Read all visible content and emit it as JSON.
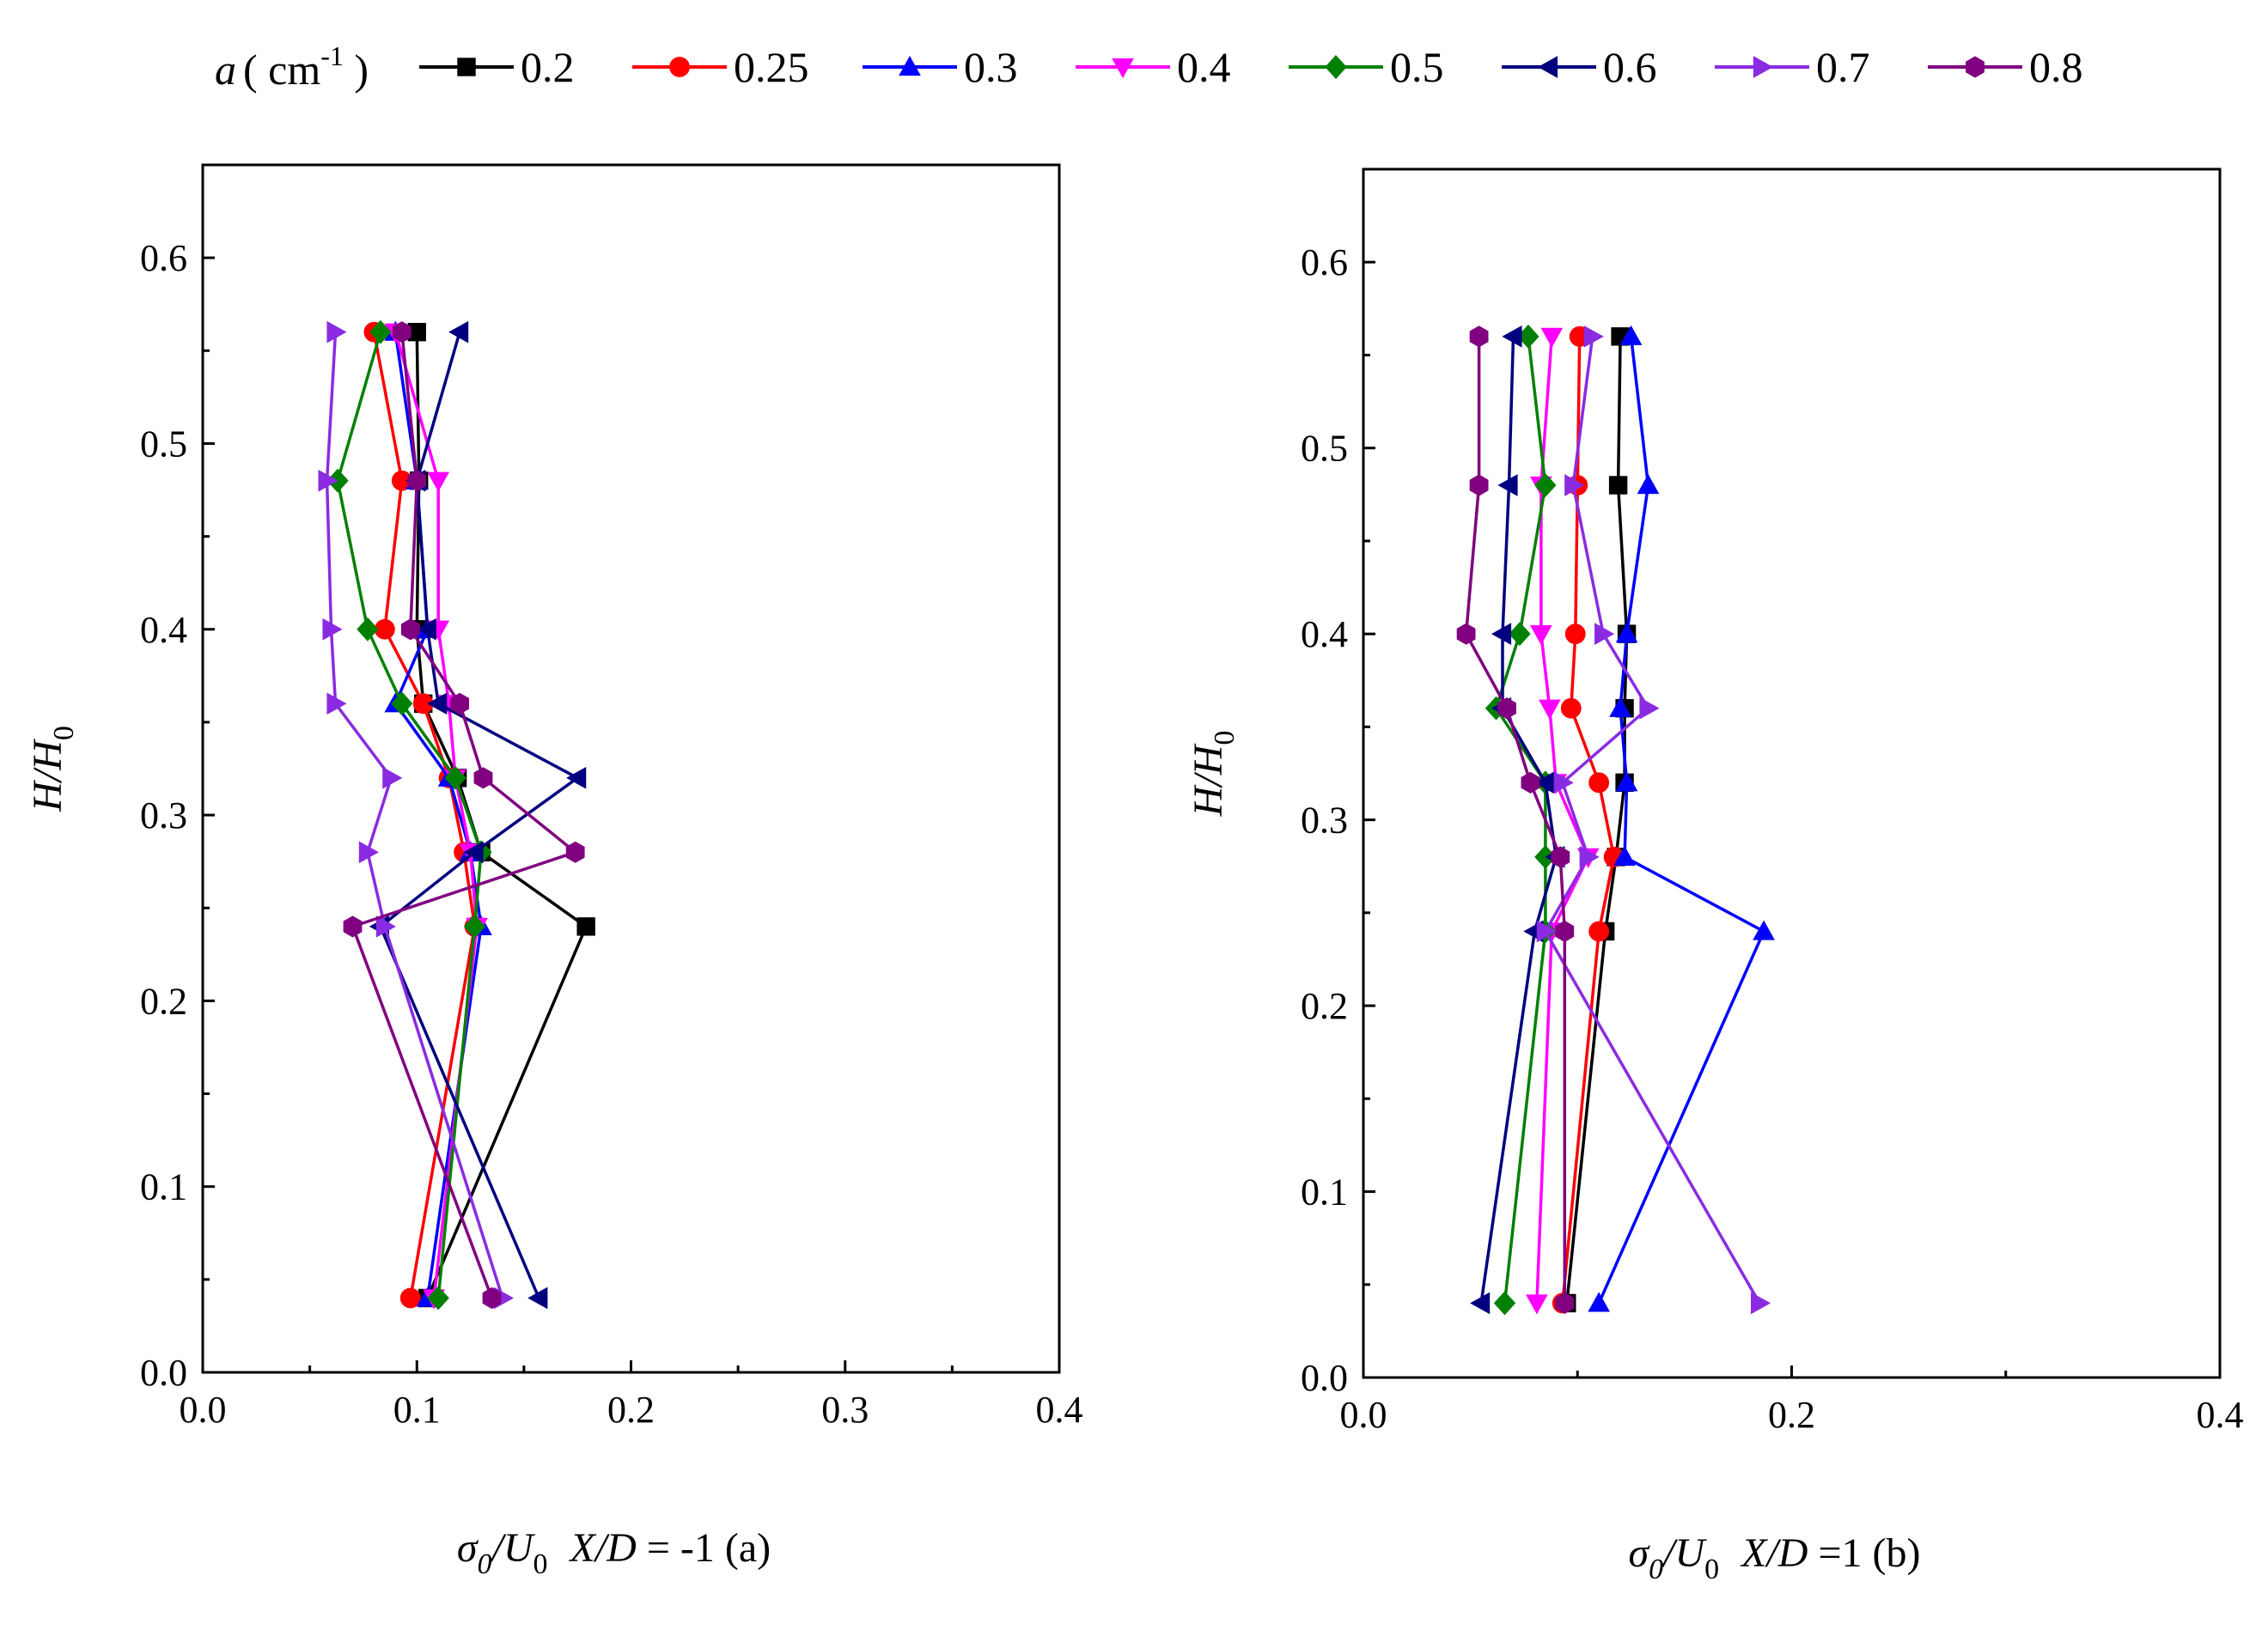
{
  "chart_data": {
    "type": "line",
    "legend": {
      "title_symbol": "a",
      "title_unit": "( cm",
      "title_exp": "-1",
      "title_close": " )",
      "position": "top",
      "labels": [
        "0.2",
        "0.25",
        "0.3",
        "0.4",
        "0.5",
        "0.6",
        "0.7",
        "0.8"
      ]
    },
    "styles": [
      {
        "name": "0.2",
        "color": "#000000",
        "marker": "square"
      },
      {
        "name": "0.25",
        "color": "#ff0000",
        "marker": "circle"
      },
      {
        "name": "0.3",
        "color": "#0000ff",
        "marker": "triangle-up"
      },
      {
        "name": "0.4",
        "color": "#ff00ff",
        "marker": "triangle-down"
      },
      {
        "name": "0.5",
        "color": "#008000",
        "marker": "diamond"
      },
      {
        "name": "0.6",
        "color": "#000080",
        "marker": "triangle-left"
      },
      {
        "name": "0.7",
        "color": "#8a2be2",
        "marker": "triangle-right"
      },
      {
        "name": "0.8",
        "color": "#800080",
        "marker": "hexagon"
      }
    ],
    "panels": [
      {
        "id": "a",
        "xlim": [
          0,
          0.4
        ],
        "ylim": [
          0,
          0.65
        ],
        "xticks": [
          "0.0",
          "0.1",
          "0.2",
          "0.3",
          "0.4"
        ],
        "yticks": [
          "0.0",
          "0.1",
          "0.2",
          "0.3",
          "0.4",
          "0.5",
          "0.6"
        ],
        "ylabel_main": "H/H",
        "ylabel_sub": "0",
        "xlabel_sigma": "σ",
        "xlabel_sigma_sub": "0",
        "xlabel_u": "/U",
        "xlabel_u_sub": "0",
        "xlabel_rest": "X/D",
        "xlabel_value": " = -1 (a)",
        "series": [
          {
            "name": "0.2",
            "x": [
              0.105,
              0.179,
              0.13,
              0.119,
              0.103,
              0.1,
              0.101,
              0.1
            ],
            "y": [
              0.04,
              0.24,
              0.28,
              0.32,
              0.36,
              0.4,
              0.48,
              0.56
            ]
          },
          {
            "name": "0.25",
            "x": [
              0.097,
              0.127,
              0.122,
              0.115,
              0.103,
              0.085,
              0.093,
              0.08
            ],
            "y": [
              0.04,
              0.24,
              0.28,
              0.32,
              0.36,
              0.4,
              0.48,
              0.56
            ]
          },
          {
            "name": "0.3",
            "x": [
              0.105,
              0.13,
              0.125,
              0.115,
              0.09,
              0.105,
              0.1,
              0.09
            ],
            "y": [
              0.04,
              0.24,
              0.28,
              0.32,
              0.36,
              0.4,
              0.48,
              0.56
            ]
          },
          {
            "name": "0.4",
            "x": [
              0.108,
              0.128,
              0.125,
              0.118,
              0.115,
              0.11,
              0.11,
              0.09
            ],
            "y": [
              0.04,
              0.24,
              0.28,
              0.32,
              0.36,
              0.4,
              0.48,
              0.56
            ]
          },
          {
            "name": "0.5",
            "x": [
              0.11,
              0.127,
              0.13,
              0.118,
              0.093,
              0.077,
              0.063,
              0.083
            ],
            "y": [
              0.04,
              0.24,
              0.28,
              0.32,
              0.36,
              0.4,
              0.48,
              0.56
            ]
          },
          {
            "name": "0.6",
            "x": [
              0.157,
              0.083,
              0.127,
              0.175,
              0.11,
              0.105,
              0.1,
              0.12
            ],
            "y": [
              0.04,
              0.24,
              0.28,
              0.32,
              0.36,
              0.4,
              0.48,
              0.56
            ]
          },
          {
            "name": "0.7",
            "x": [
              0.14,
              0.085,
              0.077,
              0.088,
              0.062,
              0.06,
              0.058,
              0.062
            ],
            "y": [
              0.04,
              0.24,
              0.28,
              0.32,
              0.36,
              0.4,
              0.48,
              0.56
            ]
          },
          {
            "name": "0.8",
            "x": [
              0.135,
              0.07,
              0.174,
              0.131,
              0.12,
              0.097,
              0.1,
              0.093
            ],
            "y": [
              0.04,
              0.24,
              0.28,
              0.32,
              0.36,
              0.4,
              0.48,
              0.56
            ]
          }
        ]
      },
      {
        "id": "b",
        "xlim": [
          0,
          0.4
        ],
        "ylim": [
          0,
          0.65
        ],
        "xticks": [
          "0.0",
          "0.2",
          "0.4"
        ],
        "yticks": [
          "0.0",
          "0.1",
          "0.2",
          "0.3",
          "0.4",
          "0.5",
          "0.6"
        ],
        "ylabel_main": "H/H",
        "ylabel_sub": "0",
        "xlabel_sigma": "σ",
        "xlabel_sigma_sub": "0",
        "xlabel_u": "/U",
        "xlabel_u_sub": "0",
        "xlabel_rest": "X/D",
        "xlabel_value": " =1 (b)",
        "series": [
          {
            "name": "0.2",
            "x": [
              0.095,
              0.113,
              0.118,
              0.122,
              0.122,
              0.123,
              0.119,
              0.12
            ],
            "y": [
              0.04,
              0.24,
              0.28,
              0.32,
              0.36,
              0.4,
              0.48,
              0.56
            ]
          },
          {
            "name": "0.25",
            "x": [
              0.093,
              0.11,
              0.117,
              0.11,
              0.097,
              0.099,
              0.1,
              0.101
            ],
            "y": [
              0.04,
              0.24,
              0.28,
              0.32,
              0.36,
              0.4,
              0.48,
              0.56
            ]
          },
          {
            "name": "0.3",
            "x": [
              0.11,
              0.187,
              0.122,
              0.123,
              0.12,
              0.123,
              0.133,
              0.125
            ],
            "y": [
              0.04,
              0.24,
              0.28,
              0.32,
              0.36,
              0.4,
              0.48,
              0.56
            ]
          },
          {
            "name": "0.4",
            "x": [
              0.081,
              0.088,
              0.105,
              0.09,
              0.087,
              0.083,
              0.083,
              0.088
            ],
            "y": [
              0.04,
              0.24,
              0.28,
              0.32,
              0.36,
              0.4,
              0.48,
              0.56
            ]
          },
          {
            "name": "0.5",
            "x": [
              0.066,
              0.085,
              0.085,
              0.085,
              0.062,
              0.073,
              0.085,
              0.077
            ],
            "y": [
              0.04,
              0.24,
              0.28,
              0.32,
              0.36,
              0.4,
              0.48,
              0.56
            ]
          },
          {
            "name": "0.6",
            "x": [
              0.055,
              0.08,
              0.09,
              0.085,
              0.065,
              0.065,
              0.068,
              0.07
            ],
            "y": [
              0.04,
              0.24,
              0.28,
              0.32,
              0.36,
              0.4,
              0.48,
              0.56
            ]
          },
          {
            "name": "0.7",
            "x": [
              0.185,
              0.085,
              0.105,
              0.093,
              0.133,
              0.112,
              0.098,
              0.107
            ],
            "y": [
              0.04,
              0.24,
              0.28,
              0.32,
              0.36,
              0.4,
              0.48,
              0.56
            ]
          },
          {
            "name": "0.8",
            "x": [
              0.094,
              0.094,
              0.092,
              0.078,
              0.067,
              0.048,
              0.054,
              0.054
            ],
            "y": [
              0.04,
              0.24,
              0.28,
              0.32,
              0.36,
              0.4,
              0.48,
              0.56
            ]
          }
        ]
      }
    ]
  }
}
